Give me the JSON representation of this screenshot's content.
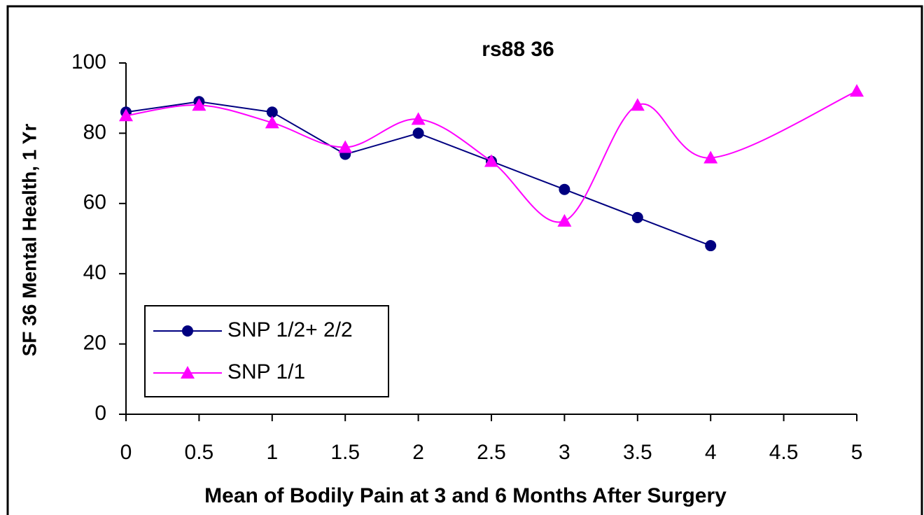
{
  "chart_data": {
    "type": "line",
    "title": "rs88 36",
    "x_label": "Mean of Bodily Pain at 3 and 6 Months After Surgery",
    "y_label": "SF 36 Mental Health, 1 Yr",
    "series": [
      {
        "name": "SNP 1/2+ 2/2",
        "color": "#000080",
        "marker": "circle",
        "smooth": false,
        "x": [
          0,
          0.5,
          1,
          1.5,
          2,
          2.5,
          3,
          3.5,
          4
        ],
        "values": [
          86,
          89,
          86,
          74,
          80,
          72,
          64,
          56,
          48
        ]
      },
      {
        "name": "SNP 1/1",
        "color": "#ff00ff",
        "marker": "triangle",
        "smooth": true,
        "x": [
          0,
          0.5,
          1,
          1.5,
          2,
          2.5,
          3,
          3.5,
          4,
          5
        ],
        "values": [
          85,
          88,
          83,
          76,
          84,
          72,
          55,
          88,
          73,
          92
        ]
      }
    ],
    "xlim": [
      0,
      5
    ],
    "xticks": [
      0,
      0.5,
      1,
      1.5,
      2,
      2.5,
      3,
      3.5,
      4,
      4.5,
      5
    ],
    "ylim": [
      0,
      100
    ],
    "yticks": [
      0,
      20,
      40,
      60,
      80,
      100
    ],
    "grid": false,
    "legend": "lower left"
  }
}
